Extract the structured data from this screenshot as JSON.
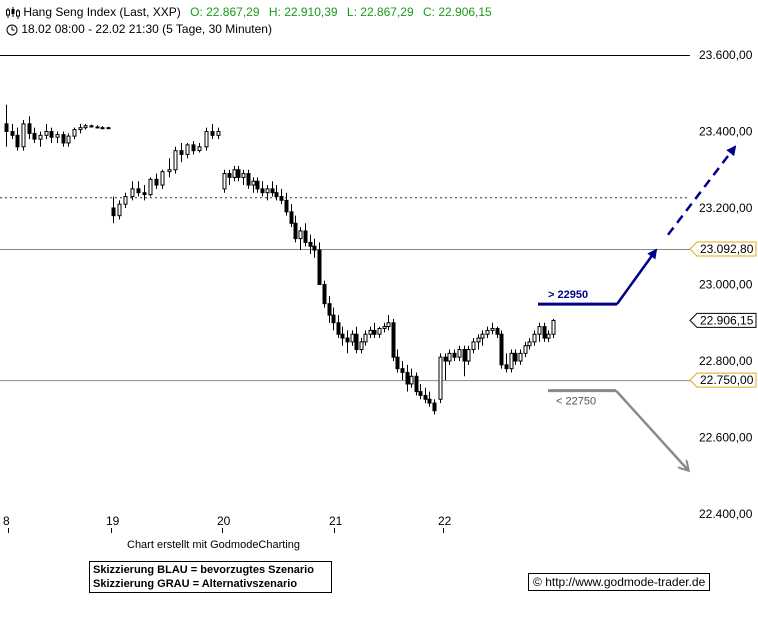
{
  "header": {
    "title": "Hang Seng Index (Last, XXP)",
    "open": "O: 22.867,29",
    "high": "H: 22.910,39",
    "low": "L: 22.867,29",
    "close": "C: 22.906,15",
    "period": "18.02 08:00 - 22.02 21:30 (5 Tage, 30 Minuten)",
    "chart_icon": "candlestick-icon",
    "clock_icon": "clock-icon"
  },
  "footer": {
    "credit": "Chart erstellt mit GodmodeCharting",
    "legend_blue": "Skizzierung BLAU = bevorzugtes Szenario",
    "legend_grey": "Skizzierung GRAU = Alternativszenario",
    "source": "http://www.godmode-trader.de",
    "copyright_icon": "copyright-icon"
  },
  "colors": {
    "blue": "#00008b",
    "grey": "#8a8a8a",
    "accent": "#e6a817",
    "green": "#1a9a1a"
  },
  "chart_data": {
    "type": "candlestick",
    "x_ticks": [
      "8",
      "19",
      "20",
      "21",
      "22"
    ],
    "y_ticks": [
      "23.600,00",
      "23.400,00",
      "23.200,00",
      "23.000,00",
      "22.800,00",
      "22.600,00",
      "22.400,00"
    ],
    "y_tick_values": [
      23600,
      23400,
      23200,
      23000,
      22800,
      22600,
      22400
    ],
    "ylim": [
      22380,
      23640
    ],
    "levels": [
      {
        "value": 23600,
        "style": "solid-black"
      },
      {
        "value": 23228,
        "style": "dotted"
      },
      {
        "value": 23092.8,
        "style": "solid-grey",
        "label": "23.092,80"
      },
      {
        "value": 22750,
        "style": "solid-grey",
        "label": "22.750,00"
      }
    ],
    "last_price": {
      "value": 22906.15,
      "label": "22.906,15"
    },
    "scenario_blue": {
      "label": "> 22950",
      "level": 22950,
      "target": 23360
    },
    "scenario_grey": {
      "label": "< 22750",
      "level": 22750,
      "target": 22515
    },
    "candles": [
      [
        23420,
        23470,
        23360,
        23400
      ],
      [
        23400,
        23420,
        23380,
        23390
      ],
      [
        23390,
        23410,
        23350,
        23360
      ],
      [
        23360,
        23430,
        23350,
        23420
      ],
      [
        23420,
        23440,
        23380,
        23395
      ],
      [
        23395,
        23410,
        23370,
        23380
      ],
      [
        23380,
        23400,
        23360,
        23390
      ],
      [
        23390,
        23420,
        23380,
        23400
      ],
      [
        23400,
        23410,
        23370,
        23385
      ],
      [
        23385,
        23400,
        23370,
        23392
      ],
      [
        23392,
        23400,
        23360,
        23370
      ],
      [
        23370,
        23395,
        23360,
        23388
      ],
      [
        23388,
        23410,
        23380,
        23405
      ],
      [
        23405,
        23420,
        23395,
        23410
      ],
      [
        23410,
        23420,
        23405,
        23415
      ],
      [
        23415,
        23418,
        23410,
        23412
      ],
      [
        23412,
        23416,
        23408,
        23410
      ],
      [
        23410,
        23414,
        23406,
        23410
      ],
      [
        23410,
        23412,
        23408,
        23409
      ],
      [
        23200,
        23230,
        23160,
        23180
      ],
      [
        23180,
        23220,
        23170,
        23210
      ],
      [
        23210,
        23240,
        23200,
        23230
      ],
      [
        23230,
        23270,
        23220,
        23250
      ],
      [
        23250,
        23270,
        23230,
        23240
      ],
      [
        23240,
        23260,
        23220,
        23235
      ],
      [
        23235,
        23280,
        23230,
        23275
      ],
      [
        23275,
        23290,
        23250,
        23260
      ],
      [
        23260,
        23300,
        23250,
        23295
      ],
      [
        23295,
        23330,
        23280,
        23300
      ],
      [
        23300,
        23360,
        23290,
        23350
      ],
      [
        23350,
        23370,
        23320,
        23340
      ],
      [
        23340,
        23370,
        23330,
        23365
      ],
      [
        23365,
        23375,
        23340,
        23350
      ],
      [
        23350,
        23370,
        23345,
        23360
      ],
      [
        23360,
        23410,
        23350,
        23400
      ],
      [
        23400,
        23420,
        23380,
        23390
      ],
      [
        23390,
        23410,
        23380,
        23400
      ],
      [
        23250,
        23300,
        23240,
        23290
      ],
      [
        23290,
        23300,
        23260,
        23280
      ],
      [
        23280,
        23310,
        23270,
        23300
      ],
      [
        23300,
        23310,
        23270,
        23280
      ],
      [
        23280,
        23300,
        23260,
        23290
      ],
      [
        23290,
        23300,
        23250,
        23260
      ],
      [
        23260,
        23280,
        23240,
        23270
      ],
      [
        23270,
        23280,
        23240,
        23250
      ],
      [
        23250,
        23270,
        23230,
        23240
      ],
      [
        23240,
        23260,
        23220,
        23250
      ],
      [
        23250,
        23270,
        23230,
        23240
      ],
      [
        23240,
        23260,
        23220,
        23230
      ],
      [
        23230,
        23250,
        23210,
        23220
      ],
      [
        23220,
        23240,
        23180,
        23190
      ],
      [
        23190,
        23210,
        23150,
        23160
      ],
      [
        23160,
        23180,
        23110,
        23120
      ],
      [
        23120,
        23150,
        23090,
        23140
      ],
      [
        23140,
        23160,
        23100,
        23110
      ],
      [
        23110,
        23130,
        23080,
        23100
      ],
      [
        23100,
        23120,
        23070,
        23090
      ],
      [
        23090,
        23110,
        23000,
        23000
      ],
      [
        23000,
        23010,
        22940,
        22950
      ],
      [
        22950,
        22970,
        22900,
        22920
      ],
      [
        22920,
        22940,
        22880,
        22900
      ],
      [
        22900,
        22920,
        22860,
        22870
      ],
      [
        22870,
        22890,
        22840,
        22860
      ],
      [
        22860,
        22880,
        22820,
        22850
      ],
      [
        22850,
        22880,
        22840,
        22870
      ],
      [
        22870,
        22890,
        22820,
        22830
      ],
      [
        22830,
        22860,
        22820,
        22850
      ],
      [
        22850,
        22880,
        22840,
        22870
      ],
      [
        22870,
        22890,
        22860,
        22880
      ],
      [
        22880,
        22900,
        22860,
        22870
      ],
      [
        22870,
        22890,
        22860,
        22885
      ],
      [
        22885,
        22900,
        22875,
        22890
      ],
      [
        22890,
        22920,
        22880,
        22900
      ],
      [
        22900,
        22910,
        22800,
        22810
      ],
      [
        22810,
        22830,
        22770,
        22780
      ],
      [
        22780,
        22800,
        22750,
        22770
      ],
      [
        22770,
        22790,
        22720,
        22740
      ],
      [
        22740,
        22780,
        22730,
        22760
      ],
      [
        22760,
        22770,
        22710,
        22720
      ],
      [
        22720,
        22740,
        22700,
        22710
      ],
      [
        22710,
        22730,
        22690,
        22700
      ],
      [
        22700,
        22720,
        22680,
        22690
      ],
      [
        22690,
        22700,
        22660,
        22670
      ],
      [
        22700,
        22820,
        22690,
        22810
      ],
      [
        22810,
        22820,
        22750,
        22800
      ],
      [
        22800,
        22830,
        22790,
        22820
      ],
      [
        22820,
        22830,
        22800,
        22810
      ],
      [
        22810,
        22840,
        22800,
        22830
      ],
      [
        22830,
        22840,
        22760,
        22800
      ],
      [
        22800,
        22840,
        22790,
        22830
      ],
      [
        22830,
        22860,
        22820,
        22850
      ],
      [
        22850,
        22870,
        22830,
        22860
      ],
      [
        22860,
        22880,
        22840,
        22870
      ],
      [
        22870,
        22890,
        22860,
        22880
      ],
      [
        22880,
        22900,
        22870,
        22885
      ],
      [
        22885,
        22890,
        22860,
        22870
      ],
      [
        22870,
        22880,
        22780,
        22790
      ],
      [
        22790,
        22820,
        22770,
        22780
      ],
      [
        22780,
        22830,
        22770,
        22820
      ],
      [
        22820,
        22830,
        22790,
        22800
      ],
      [
        22800,
        22830,
        22790,
        22820
      ],
      [
        22820,
        22850,
        22810,
        22840
      ],
      [
        22840,
        22860,
        22830,
        22850
      ],
      [
        22850,
        22880,
        22840,
        22870
      ],
      [
        22870,
        22900,
        22850,
        22890
      ],
      [
        22890,
        22900,
        22850,
        22860
      ],
      [
        22860,
        22880,
        22850,
        22870
      ],
      [
        22870,
        22910,
        22860,
        22906
      ]
    ]
  }
}
